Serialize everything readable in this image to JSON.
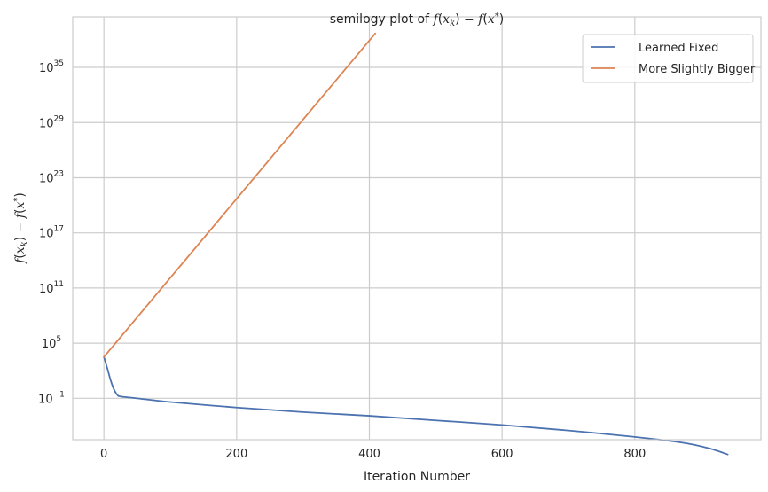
{
  "chart_data": {
    "type": "line",
    "title": "semilogy plot of f(x_k) − f(x*)",
    "title_parts": {
      "prefix": "semilogy plot of "
    },
    "xlabel": "Iteration Number",
    "ylabel": "f(x_k) − f(x*)",
    "y_scale": "log",
    "xlim": [
      -47,
      990
    ],
    "ylim_exp": [
      -5.5,
      40.5
    ],
    "grid": true,
    "legend_position": "top-right",
    "x_ticks": [
      0,
      200,
      400,
      600,
      800
    ],
    "y_tick_exponents": [
      -1,
      5,
      11,
      17,
      23,
      29,
      35
    ],
    "y_tick_base": "10",
    "series": [
      {
        "name": "Learned Fixed",
        "color": "#4c72b0",
        "points": [
          [
            0,
            3.5
          ],
          [
            5,
            2.3
          ],
          [
            10,
            1.0
          ],
          [
            15,
            0.0
          ],
          [
            20,
            -0.6
          ],
          [
            25,
            -0.8
          ],
          [
            50,
            -1.0
          ],
          [
            100,
            -1.4
          ],
          [
            200,
            -2.0
          ],
          [
            300,
            -2.5
          ],
          [
            400,
            -2.9
          ],
          [
            500,
            -3.4
          ],
          [
            600,
            -3.9
          ],
          [
            700,
            -4.5
          ],
          [
            800,
            -5.2
          ],
          [
            870,
            -5.8
          ],
          [
            910,
            -6.4
          ],
          [
            940,
            -7.1
          ]
        ]
      },
      {
        "name": "More Slightly Bigger",
        "color": "#dd8452",
        "points": [
          [
            0,
            3.5
          ],
          [
            409,
            38.7
          ]
        ]
      }
    ]
  }
}
